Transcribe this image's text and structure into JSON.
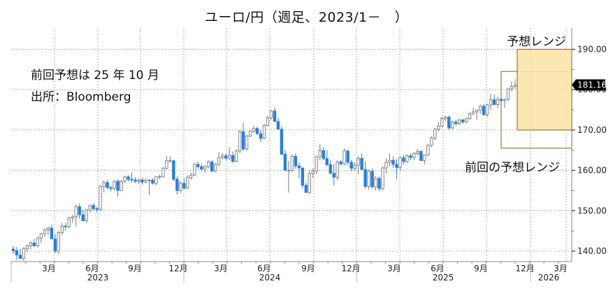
{
  "title": "ユーロ/円（週足、2023/1－　）",
  "annotations": {
    "previous_forecast_note": "前回予想は 25 年 10 月",
    "source": "出所：Bloomberg",
    "forecast_range_label": "予想レンジ",
    "previous_forecast_range_label": "前回の予想レンジ"
  },
  "colors": {
    "bearish": "#2a7fd6",
    "bullish_fill": "#f4f4f4",
    "bullish_stroke": "#777777",
    "range_fill": "#fbe3a6",
    "range_stroke": "#9a7b2e",
    "grid": "#b0b0b0",
    "badge_bg": "#000000"
  },
  "chart_data": {
    "type": "candlestick",
    "title": "ユーロ/円（週足、2023/1－　）",
    "xlabel": "",
    "ylabel": "",
    "ylim": [
      137.5,
      195
    ],
    "y_ticks": [
      "140.00",
      "150.00",
      "160.00",
      "170.00",
      "180.00",
      "190.00"
    ],
    "y_tick_values": [
      140,
      150,
      160,
      170,
      180,
      190
    ],
    "x_month_ticks": [
      "3月",
      "6月",
      "9月",
      "12月",
      "3月",
      "6月",
      "9月",
      "12月",
      "3月",
      "6月",
      "9月",
      "12月",
      "3月"
    ],
    "x_year_labels": [
      "2023",
      "2024",
      "2025",
      "2026"
    ],
    "grid": true,
    "last_price_label": "181.16",
    "last_price": 181.16,
    "forecast_range": {
      "label": "予想レンジ",
      "low": 170.0,
      "high": 190.0,
      "period": "2025/11 - 2026/3"
    },
    "previous_forecast_range": {
      "label": "前回の予想レンジ",
      "low": 165.5,
      "high": 184.5,
      "period": "2025/10 - 2026/3"
    },
    "series_weekly_ohlc": [
      [
        140.5,
        141.2,
        139.3,
        140.1
      ],
      [
        140.1,
        141.0,
        137.8,
        139.0
      ],
      [
        139.0,
        140.5,
        138.0,
        138.2
      ],
      [
        138.2,
        141.0,
        137.6,
        140.6
      ],
      [
        140.6,
        141.6,
        139.8,
        141.3
      ],
      [
        141.3,
        142.4,
        140.3,
        142.0
      ],
      [
        142.0,
        143.0,
        141.0,
        141.3
      ],
      [
        141.3,
        143.6,
        140.9,
        143.2
      ],
      [
        143.2,
        144.6,
        142.0,
        144.3
      ],
      [
        144.3,
        145.6,
        143.5,
        145.2
      ],
      [
        145.2,
        146.0,
        144.0,
        145.7
      ],
      [
        145.7,
        146.5,
        143.5,
        143.0
      ],
      [
        143.0,
        144.2,
        139.5,
        140.0
      ],
      [
        140.0,
        145.0,
        139.3,
        144.6
      ],
      [
        144.6,
        147.0,
        144.0,
        146.2
      ],
      [
        146.2,
        147.0,
        145.0,
        146.0
      ],
      [
        146.0,
        148.5,
        145.6,
        148.2
      ],
      [
        148.2,
        149.0,
        147.0,
        148.5
      ],
      [
        148.5,
        151.5,
        146.0,
        151.0
      ],
      [
        151.0,
        151.8,
        148.0,
        149.0
      ],
      [
        149.0,
        150.3,
        147.3,
        147.5
      ],
      [
        147.5,
        150.5,
        147.0,
        150.2
      ],
      [
        150.2,
        151.5,
        149.6,
        151.3
      ],
      [
        151.3,
        151.8,
        150.0,
        150.5
      ],
      [
        150.5,
        151.0,
        149.5,
        150.3
      ],
      [
        150.3,
        156.3,
        150.0,
        156.0
      ],
      [
        156.0,
        157.5,
        154.5,
        157.0
      ],
      [
        157.0,
        157.6,
        155.3,
        155.7
      ],
      [
        155.7,
        156.2,
        154.8,
        155.5
      ],
      [
        155.5,
        157.5,
        155.0,
        157.3
      ],
      [
        157.3,
        157.8,
        153.5,
        155.0
      ],
      [
        155.0,
        157.6,
        155.0,
        157.3
      ],
      [
        157.3,
        158.7,
        156.8,
        158.4
      ],
      [
        158.4,
        158.8,
        157.3,
        157.8
      ],
      [
        157.8,
        159.5,
        157.0,
        157.6
      ],
      [
        157.6,
        158.3,
        156.8,
        157.3
      ],
      [
        157.3,
        158.0,
        156.6,
        157.6
      ],
      [
        157.6,
        158.2,
        156.5,
        157.1
      ],
      [
        157.1,
        158.0,
        156.8,
        157.5
      ],
      [
        157.5,
        157.9,
        153.9,
        157.6
      ],
      [
        157.6,
        158.0,
        156.5,
        156.8
      ],
      [
        156.8,
        158.6,
        156.3,
        158.4
      ],
      [
        158.4,
        158.9,
        157.8,
        158.5
      ],
      [
        158.5,
        160.8,
        158.2,
        160.5
      ],
      [
        160.5,
        163.6,
        160.2,
        162.4
      ],
      [
        162.4,
        163.5,
        161.8,
        162.4
      ],
      [
        162.4,
        162.6,
        157.3,
        157.8
      ],
      [
        157.8,
        158.5,
        154.0,
        155.0
      ],
      [
        155.0,
        157.3,
        154.4,
        156.8
      ],
      [
        156.8,
        158.0,
        155.2,
        155.6
      ],
      [
        155.6,
        158.8,
        155.3,
        158.3
      ],
      [
        158.3,
        159.5,
        157.6,
        158.8
      ],
      [
        158.8,
        161.8,
        158.5,
        161.5
      ],
      [
        161.5,
        162.2,
        160.4,
        160.9
      ],
      [
        160.9,
        161.6,
        159.8,
        160.3
      ],
      [
        160.3,
        161.3,
        159.4,
        160.9
      ],
      [
        160.9,
        162.5,
        160.5,
        162.1
      ],
      [
        162.1,
        162.5,
        159.6,
        159.8
      ],
      [
        159.8,
        161.8,
        159.5,
        161.5
      ],
      [
        161.5,
        164.5,
        161.0,
        163.2
      ],
      [
        163.2,
        164.3,
        162.6,
        163.6
      ],
      [
        163.6,
        164.2,
        162.5,
        163.0
      ],
      [
        163.0,
        165.7,
        162.5,
        163.7
      ],
      [
        163.7,
        164.7,
        161.9,
        162.2
      ],
      [
        162.2,
        165.2,
        162.0,
        164.8
      ],
      [
        164.8,
        170.0,
        164.2,
        169.6
      ],
      [
        169.6,
        171.8,
        164.8,
        165.3
      ],
      [
        165.3,
        168.8,
        164.9,
        168.5
      ],
      [
        168.5,
        170.0,
        168.2,
        169.7
      ],
      [
        169.7,
        171.0,
        169.2,
        170.4
      ],
      [
        170.4,
        170.9,
        168.7,
        169.1
      ],
      [
        169.1,
        170.1,
        167.0,
        167.9
      ],
      [
        167.9,
        171.5,
        167.7,
        171.1
      ],
      [
        171.1,
        173.5,
        171.0,
        173.0
      ],
      [
        173.0,
        175.0,
        172.5,
        174.7
      ],
      [
        174.7,
        175.5,
        172.5,
        172.1
      ],
      [
        172.1,
        173.0,
        170.4,
        170.2
      ],
      [
        170.2,
        171.0,
        163.8,
        164.0
      ],
      [
        164.0,
        165.0,
        160.0,
        160.0
      ],
      [
        160.0,
        162.3,
        154.5,
        160.0
      ],
      [
        160.0,
        164.0,
        159.5,
        163.5
      ],
      [
        163.5,
        164.2,
        160.4,
        161.1
      ],
      [
        161.1,
        162.0,
        158.0,
        160.6
      ],
      [
        160.6,
        160.7,
        155.6,
        156.3
      ],
      [
        156.3,
        157.0,
        155.0,
        154.5
      ],
      [
        154.5,
        160.0,
        154.2,
        159.2
      ],
      [
        159.2,
        160.5,
        158.1,
        159.8
      ],
      [
        159.8,
        163.6,
        159.0,
        163.4
      ],
      [
        163.4,
        166.5,
        162.5,
        164.9
      ],
      [
        164.9,
        165.7,
        162.5,
        162.9
      ],
      [
        162.9,
        165.0,
        161.0,
        161.4
      ],
      [
        161.4,
        162.5,
        159.0,
        159.3
      ],
      [
        159.3,
        161.5,
        156.3,
        158.3
      ],
      [
        158.3,
        162.5,
        157.5,
        162.1
      ],
      [
        162.1,
        162.6,
        161.1,
        161.6
      ],
      [
        161.6,
        165.5,
        161.3,
        164.8
      ],
      [
        164.8,
        165.2,
        161.3,
        162.0
      ],
      [
        162.0,
        162.5,
        159.7,
        160.5
      ],
      [
        160.5,
        162.0,
        159.9,
        161.3
      ],
      [
        161.3,
        163.5,
        159.0,
        163.0
      ],
      [
        163.0,
        164.2,
        160.0,
        160.2
      ],
      [
        160.2,
        162.2,
        155.5,
        156.0
      ],
      [
        156.0,
        160.2,
        155.2,
        159.8
      ],
      [
        159.8,
        160.5,
        155.5,
        155.9
      ],
      [
        155.9,
        158.5,
        155.0,
        158.0
      ],
      [
        158.0,
        158.5,
        154.8,
        155.5
      ],
      [
        155.5,
        161.0,
        155.1,
        160.6
      ],
      [
        160.6,
        163.0,
        159.2,
        162.0
      ],
      [
        162.0,
        164.2,
        161.0,
        162.5
      ],
      [
        162.5,
        163.5,
        160.6,
        161.5
      ],
      [
        161.5,
        162.7,
        157.8,
        160.7
      ],
      [
        160.7,
        163.5,
        160.0,
        163.1
      ],
      [
        163.1,
        163.8,
        161.5,
        162.2
      ],
      [
        162.2,
        164.0,
        161.8,
        163.6
      ],
      [
        163.6,
        164.2,
        162.5,
        163.2
      ],
      [
        163.2,
        164.5,
        162.6,
        164.2
      ],
      [
        164.2,
        165.3,
        163.7,
        164.7
      ],
      [
        164.7,
        165.0,
        162.4,
        162.4
      ],
      [
        162.4,
        164.0,
        161.5,
        163.8
      ],
      [
        163.8,
        166.5,
        163.5,
        166.2
      ],
      [
        166.2,
        168.5,
        165.8,
        168.0
      ],
      [
        168.0,
        170.5,
        167.5,
        170.2
      ],
      [
        170.2,
        172.0,
        169.6,
        171.0
      ],
      [
        171.0,
        173.3,
        170.6,
        172.8
      ],
      [
        172.8,
        173.5,
        172.2,
        173.2
      ],
      [
        173.2,
        173.6,
        170.0,
        170.5
      ],
      [
        170.5,
        172.4,
        170.2,
        172.0
      ],
      [
        172.0,
        172.6,
        171.0,
        171.6
      ],
      [
        171.6,
        172.8,
        171.3,
        172.5
      ],
      [
        172.5,
        172.8,
        171.5,
        172.0
      ],
      [
        172.0,
        173.0,
        171.7,
        172.8
      ],
      [
        172.8,
        174.5,
        172.5,
        174.0
      ],
      [
        174.0,
        175.6,
        173.7,
        174.5
      ],
      [
        174.5,
        175.0,
        172.5,
        174.9
      ],
      [
        174.9,
        176.3,
        174.0,
        175.9
      ],
      [
        175.9,
        176.5,
        173.5,
        173.8
      ],
      [
        173.8,
        176.5,
        173.3,
        176.2
      ],
      [
        176.2,
        179.0,
        175.0,
        177.5
      ],
      [
        177.5,
        178.8,
        176.2,
        176.3
      ],
      [
        176.3,
        178.2,
        175.5,
        177.6
      ],
      [
        177.6,
        178.0,
        176.5,
        177.3
      ],
      [
        177.3,
        177.8,
        175.5,
        177.6
      ],
      [
        177.6,
        180.5,
        177.2,
        180.2
      ],
      [
        180.2,
        182.0,
        179.6,
        180.8
      ],
      [
        180.8,
        182.6,
        180.2,
        181.16
      ]
    ]
  }
}
